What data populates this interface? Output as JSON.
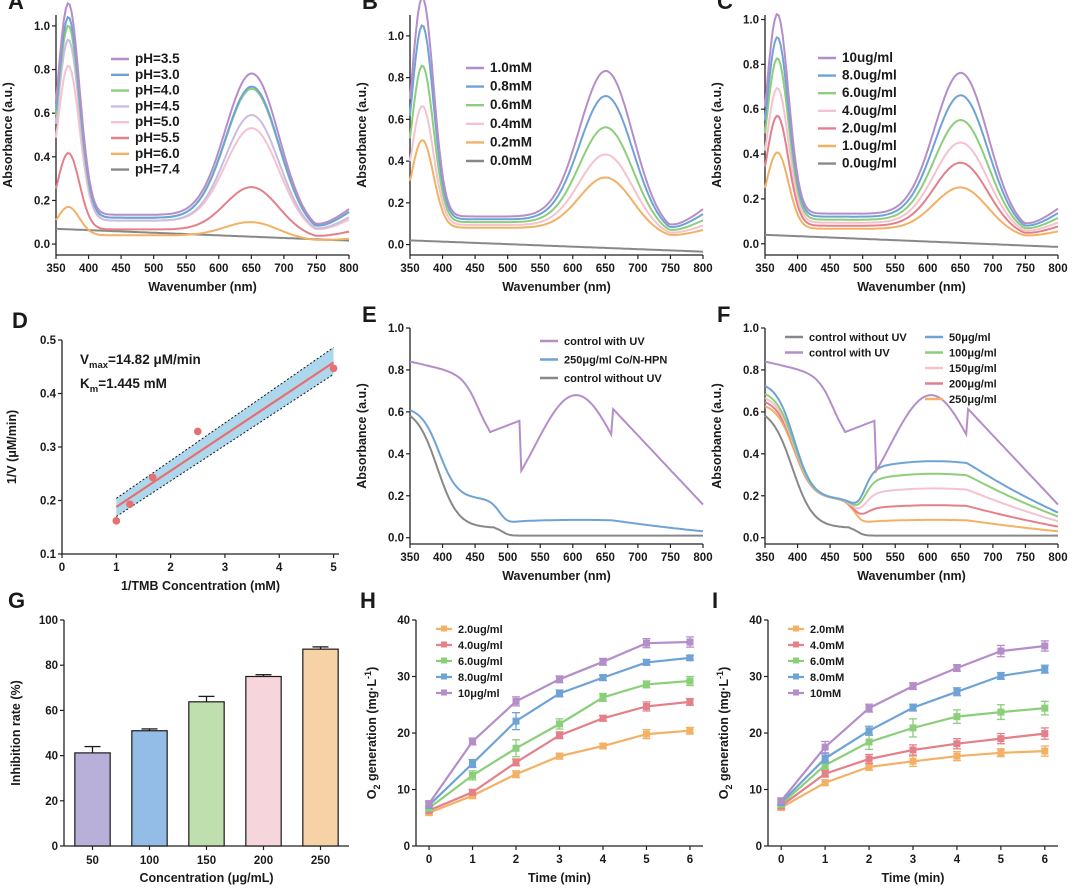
{
  "colors": {
    "purple": "#b58ec9",
    "blue": "#6fa3d6",
    "green": "#8ccf7a",
    "lavender": "#c9bde3",
    "pink": "#f5c2cf",
    "red": "#e4808a",
    "orange": "#f2b165",
    "gray": "#888888",
    "fit": "#e86f6f",
    "band": "#9fd0ea",
    "bar_purple": "#b8b0d9",
    "bar_blue": "#93bde6",
    "bar_green": "#bfe0ae",
    "bar_pink": "#f7d5dc",
    "bar_orange": "#f7d2a6"
  },
  "chart_data": [
    {
      "id": "A",
      "panel_label": "A",
      "type": "line",
      "xlabel": "Wavenumber (nm)",
      "ylabel": "Absorbance (a.u.)",
      "xlim": [
        350,
        800
      ],
      "ylim": [
        -0.05,
        1.05
      ],
      "xticks": [
        "350",
        "400",
        "450",
        "500",
        "550",
        "600",
        "650",
        "700",
        "750",
        "800"
      ],
      "yticks": [
        "0.0",
        "0.2",
        "0.4",
        "0.6",
        "0.8",
        "1.0"
      ],
      "legend_position": "top-left",
      "series": [
        {
          "name": "pH=3.5",
          "color": "purple",
          "params": [
            0.97,
            0.68,
            0.1
          ]
        },
        {
          "name": "pH=3.0",
          "color": "blue",
          "params": [
            0.92,
            0.63,
            0.09
          ]
        },
        {
          "name": "pH=4.0",
          "color": "green",
          "params": [
            0.88,
            0.62,
            0.09
          ]
        },
        {
          "name": "pH=4.5",
          "color": "lavender",
          "params": [
            0.83,
            0.51,
            0.08
          ]
        },
        {
          "name": "pH=5.0",
          "color": "pink",
          "params": [
            0.71,
            0.45,
            0.08
          ]
        },
        {
          "name": "pH=5.5",
          "color": "red",
          "params": [
            0.35,
            0.21,
            0.05
          ]
        },
        {
          "name": "pH=6.0",
          "color": "orange",
          "params": [
            0.13,
            0.07,
            0.03
          ]
        },
        {
          "name": "pH=7.4",
          "color": "gray",
          "params": [
            0.07,
            0.0,
            0.0
          ]
        }
      ]
    },
    {
      "id": "B",
      "panel_label": "B",
      "type": "line",
      "xlabel": "Wavenumber (nm)",
      "ylabel": "Absorbance (a.u.)",
      "xlim": [
        350,
        800
      ],
      "ylim": [
        -0.05,
        1.1
      ],
      "xticks": [
        "350",
        "400",
        "450",
        "500",
        "550",
        "600",
        "650",
        "700",
        "750",
        "800"
      ],
      "yticks": [
        "0.0",
        "0.2",
        "0.4",
        "0.6",
        "0.8",
        "1.0"
      ],
      "legend_position": "top-left",
      "series": [
        {
          "name": "1.0mM",
          "color": "purple",
          "params": [
            1.05,
            0.73,
            0.1
          ]
        },
        {
          "name": "0.8mM",
          "color": "blue",
          "params": [
            0.93,
            0.62,
            0.09
          ]
        },
        {
          "name": "0.6mM",
          "color": "green",
          "params": [
            0.75,
            0.48,
            0.08
          ]
        },
        {
          "name": "0.4mM",
          "color": "pink",
          "params": [
            0.57,
            0.36,
            0.07
          ]
        },
        {
          "name": "0.2mM",
          "color": "orange",
          "params": [
            0.42,
            0.26,
            0.06
          ]
        },
        {
          "name": "0.0mM",
          "color": "gray",
          "params": [
            0.02,
            0.0,
            0.0
          ]
        }
      ]
    },
    {
      "id": "C",
      "panel_label": "C",
      "type": "line",
      "xlabel": "Wavenumber (nm)",
      "ylabel": "Absorbance (a.u.)",
      "xlim": [
        350,
        800
      ],
      "ylim": [
        -0.05,
        1.02
      ],
      "xticks": [
        "350",
        "400",
        "450",
        "500",
        "550",
        "600",
        "650",
        "700",
        "750",
        "800"
      ],
      "yticks": [
        "0.0",
        "0.2",
        "0.4",
        "0.6",
        "0.8",
        "1.0"
      ],
      "legend_position": "top-left",
      "series": [
        {
          "name": "10ug/ml",
          "color": "purple",
          "params": [
            0.89,
            0.66,
            0.1
          ]
        },
        {
          "name": "8.0ug/ml",
          "color": "blue",
          "params": [
            0.8,
            0.57,
            0.09
          ]
        },
        {
          "name": "6.0ug/ml",
          "color": "green",
          "params": [
            0.72,
            0.47,
            0.08
          ]
        },
        {
          "name": "4.0ug/ml",
          "color": "pink",
          "params": [
            0.6,
            0.38,
            0.07
          ]
        },
        {
          "name": "2.0ug/ml",
          "color": "red",
          "params": [
            0.49,
            0.3,
            0.06
          ]
        },
        {
          "name": "1.0ug/ml",
          "color": "orange",
          "params": [
            0.34,
            0.2,
            0.05
          ]
        },
        {
          "name": "0.0ug/ml",
          "color": "gray",
          "params": [
            0.04,
            0.0,
            0.0
          ]
        }
      ]
    },
    {
      "id": "D",
      "panel_label": "D",
      "type": "scatter",
      "xlabel": "1/TMB Concentration (mM)",
      "ylabel": "1/V (μM/min)",
      "xlim": [
        0,
        5.1
      ],
      "ylim": [
        0.1,
        0.5
      ],
      "xticks": [
        "0",
        "1",
        "2",
        "3",
        "4",
        "5"
      ],
      "yticks": [
        "0.1",
        "0.2",
        "0.3",
        "0.4",
        "0.5"
      ],
      "annotation_vmax_prefix": "V",
      "annotation_vmax_sub": "max",
      "annotation_vmax_value": "=14.82 μM/min",
      "annotation_km_prefix": "K",
      "annotation_km_sub": "m",
      "annotation_km_value": "=1.445 mM",
      "points": [
        [
          1.0,
          0.162
        ],
        [
          1.25,
          0.193
        ],
        [
          1.67,
          0.243
        ],
        [
          2.5,
          0.329
        ],
        [
          5.0,
          0.447
        ]
      ],
      "fit_line": [
        [
          1.0,
          0.188
        ],
        [
          5.0,
          0.458
        ]
      ]
    },
    {
      "id": "E",
      "panel_label": "E",
      "type": "line",
      "xlabel": "Wavenumber (nm)",
      "ylabel": "Absorbance (a.u.)",
      "xlim": [
        350,
        800
      ],
      "ylim": [
        -0.03,
        1.0
      ],
      "xticks": [
        "350",
        "400",
        "450",
        "500",
        "550",
        "600",
        "650",
        "700",
        "750",
        "800"
      ],
      "yticks": [
        "0.0",
        "0.2",
        "0.4",
        "0.6",
        "0.8",
        "1.0"
      ],
      "legend_position": "top-right",
      "series": [
        {
          "name": "control with UV",
          "color": "purple",
          "profile": "uv",
          "params": [
            0.84,
            0.62,
            0.0
          ]
        },
        {
          "name": "250μg/ml Co/N-HPN",
          "color": "blue",
          "profile": "sample",
          "params": [
            0.62,
            0.08,
            0.0
          ]
        },
        {
          "name": "control without UV",
          "color": "gray",
          "profile": "novu",
          "params": [
            0.61,
            0.0,
            0.0
          ]
        }
      ]
    },
    {
      "id": "F",
      "panel_label": "F",
      "type": "line",
      "xlabel": "Wavenumber (nm)",
      "ylabel": "Absorbance (a.u.)",
      "xlim": [
        350,
        800
      ],
      "ylim": [
        -0.03,
        1.0
      ],
      "xticks": [
        "350",
        "400",
        "450",
        "500",
        "550",
        "600",
        "650",
        "700",
        "750",
        "800"
      ],
      "yticks": [
        "0.0",
        "0.2",
        "0.4",
        "0.6",
        "0.8",
        "1.0"
      ],
      "legend_position": "top",
      "series": [
        {
          "name": "control without UV",
          "color": "gray",
          "profile": "novu",
          "params": [
            0.61,
            0.0,
            0.0
          ]
        },
        {
          "name": "control with UV",
          "color": "purple",
          "profile": "uv",
          "params": [
            0.84,
            0.62,
            0.0
          ]
        },
        {
          "name": "50μg/ml",
          "color": "blue",
          "profile": "sample",
          "params": [
            0.74,
            0.36,
            0.0
          ]
        },
        {
          "name": "100μg/ml",
          "color": "green",
          "profile": "sample",
          "params": [
            0.7,
            0.3,
            0.0
          ]
        },
        {
          "name": "150μg/ml",
          "color": "pink",
          "profile": "sample",
          "params": [
            0.68,
            0.23,
            0.0
          ]
        },
        {
          "name": "200μg/ml",
          "color": "red",
          "profile": "sample",
          "params": [
            0.66,
            0.15,
            0.0
          ]
        },
        {
          "name": "250μg/ml",
          "color": "orange",
          "profile": "sample",
          "params": [
            0.64,
            0.08,
            0.0
          ]
        }
      ]
    },
    {
      "id": "G",
      "panel_label": "G",
      "type": "bar",
      "xlabel": "Concentration (μg/mL)",
      "ylabel": "Inhibition rate (%)",
      "ylim": [
        0,
        100
      ],
      "yticks": [
        "0",
        "20",
        "40",
        "60",
        "80",
        "100"
      ],
      "categories": [
        "50",
        "100",
        "150",
        "200",
        "250"
      ],
      "values": [
        41.2,
        51.0,
        63.8,
        75.0,
        87.1
      ],
      "errors": [
        2.8,
        0.8,
        2.4,
        0.8,
        1.0
      ],
      "bar_colors": [
        "bar_purple",
        "bar_blue",
        "bar_green",
        "bar_pink",
        "bar_orange"
      ]
    },
    {
      "id": "H",
      "panel_label": "H",
      "type": "line",
      "xlabel": "Time (min)",
      "ylabel_prefix": "O",
      "ylabel_sub": "2",
      "ylabel_rest": " generation (mg·L",
      "ylabel_sup": "-1",
      "ylabel_end": ")",
      "xlim": [
        -0.3,
        6.3
      ],
      "ylim": [
        0,
        40
      ],
      "xticks": [
        "0",
        "1",
        "2",
        "3",
        "4",
        "5",
        "6"
      ],
      "yticks": [
        "0",
        "10",
        "20",
        "30",
        "40"
      ],
      "x": [
        0,
        1,
        2,
        3,
        4,
        5,
        6
      ],
      "legend_position": "top-left",
      "series": [
        {
          "name": "2.0ug/ml",
          "color": "orange",
          "values": [
            5.9,
            8.9,
            12.7,
            15.9,
            17.7,
            19.8,
            20.4
          ],
          "errors": [
            0.4,
            0.5,
            0.6,
            0.5,
            0.4,
            0.8,
            0.6
          ]
        },
        {
          "name": "4.0ug/ml",
          "color": "red",
          "values": [
            6.3,
            9.5,
            14.8,
            19.6,
            22.6,
            24.7,
            25.5
          ],
          "errors": [
            0.4,
            0.5,
            0.6,
            0.6,
            0.5,
            0.8,
            0.6
          ]
        },
        {
          "name": "6.0ug/ml",
          "color": "green",
          "values": [
            6.7,
            12.5,
            17.3,
            21.6,
            26.3,
            28.6,
            29.2
          ],
          "errors": [
            0.5,
            0.8,
            1.5,
            0.9,
            0.7,
            0.6,
            0.8
          ]
        },
        {
          "name": "8.0ug/ml",
          "color": "blue",
          "values": [
            7.2,
            14.6,
            22.1,
            27.0,
            29.8,
            32.5,
            33.3
          ],
          "errors": [
            0.5,
            0.7,
            1.5,
            0.6,
            0.5,
            0.5,
            0.4
          ]
        },
        {
          "name": "10μg/ml",
          "color": "purple",
          "values": [
            7.5,
            18.5,
            25.6,
            29.5,
            32.6,
            35.9,
            36.1
          ],
          "errors": [
            0.5,
            0.6,
            0.8,
            0.6,
            0.6,
            0.8,
            0.9
          ]
        }
      ]
    },
    {
      "id": "I",
      "panel_label": "I",
      "type": "line",
      "xlabel": "Time (min)",
      "ylabel_prefix": "O",
      "ylabel_sub": "2",
      "ylabel_rest": " generation (mg·L",
      "ylabel_sup": "-1",
      "ylabel_end": ")",
      "xlim": [
        -0.3,
        6.3
      ],
      "ylim": [
        0,
        40
      ],
      "xticks": [
        "0",
        "1",
        "2",
        "3",
        "4",
        "5",
        "6"
      ],
      "yticks": [
        "0",
        "10",
        "20",
        "30",
        "40"
      ],
      "x": [
        0,
        1,
        2,
        3,
        4,
        5,
        6
      ],
      "legend_position": "top-left",
      "series": [
        {
          "name": "2.0mM",
          "color": "orange",
          "values": [
            6.8,
            11.2,
            14.0,
            15.0,
            15.9,
            16.5,
            16.8
          ],
          "errors": [
            0.5,
            0.5,
            0.6,
            0.9,
            0.8,
            0.7,
            0.9
          ]
        },
        {
          "name": "4.0mM",
          "color": "red",
          "values": [
            7.1,
            12.8,
            15.4,
            17.0,
            18.1,
            19.0,
            19.9
          ],
          "errors": [
            0.5,
            0.6,
            0.8,
            0.9,
            0.9,
            0.9,
            1.0
          ]
        },
        {
          "name": "6.0mM",
          "color": "green",
          "values": [
            7.4,
            14.3,
            18.4,
            20.9,
            22.9,
            23.7,
            24.4
          ],
          "errors": [
            0.5,
            0.7,
            1.3,
            1.6,
            1.2,
            1.3,
            1.2
          ]
        },
        {
          "name": "8.0mM",
          "color": "blue",
          "values": [
            7.7,
            15.5,
            20.4,
            24.5,
            27.3,
            30.1,
            31.3
          ],
          "errors": [
            0.5,
            0.8,
            0.8,
            0.6,
            0.7,
            0.6,
            0.7
          ]
        },
        {
          "name": "10mM",
          "color": "purple",
          "values": [
            8.0,
            17.5,
            24.4,
            28.3,
            31.5,
            34.5,
            35.4
          ],
          "errors": [
            0.5,
            1.0,
            0.7,
            0.6,
            0.6,
            1.0,
            0.9
          ]
        }
      ]
    }
  ]
}
